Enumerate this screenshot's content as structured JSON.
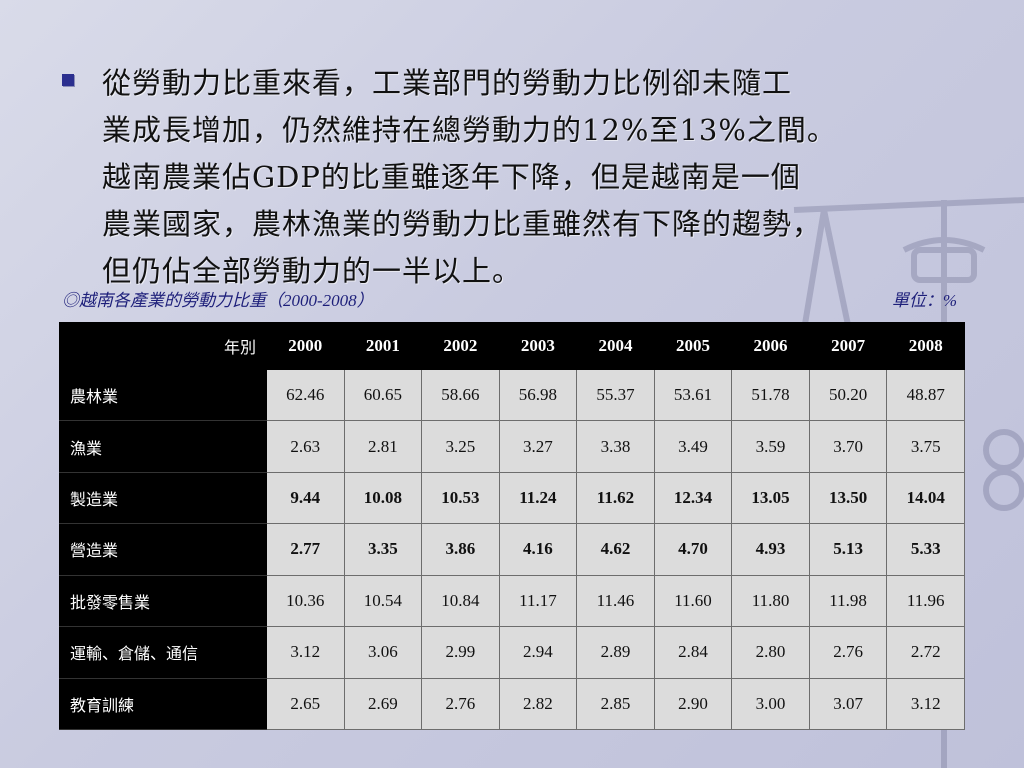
{
  "bullet": {
    "line1": "從勞動力比重來看，工業部門的勞動力比例卻未隨工",
    "line2": "業成長增加，仍然維持在總勞動力的12%至13%之間。",
    "line3": "越南農業佔GDP的比重雖逐年下降，但是越南是一個",
    "line4": "農業國家，農林漁業的勞動力比重雖然有下降的趨勢，",
    "line5": "但仍佔全部勞動力的一半以上。"
  },
  "caption": {
    "title": "◎越南各產業的勞動力比重（2000-2008）",
    "unit": "單位：%"
  },
  "table": {
    "corner": "年別",
    "years": [
      "2000",
      "2001",
      "2002",
      "2003",
      "2004",
      "2005",
      "2006",
      "2007",
      "2008"
    ],
    "rows": [
      {
        "label": "農林業",
        "values": [
          "62.46",
          "60.65",
          "58.66",
          "56.98",
          "55.37",
          "53.61",
          "51.78",
          "50.20",
          "48.87"
        ],
        "bold": false
      },
      {
        "label": "漁業",
        "values": [
          "2.63",
          "2.81",
          "3.25",
          "3.27",
          "3.38",
          "3.49",
          "3.59",
          "3.70",
          "3.75"
        ],
        "bold": false
      },
      {
        "label": "製造業",
        "values": [
          "9.44",
          "10.08",
          "10.53",
          "11.24",
          "11.62",
          "12.34",
          "13.05",
          "13.50",
          "14.04"
        ],
        "bold": true
      },
      {
        "label": "營造業",
        "values": [
          "2.77",
          "3.35",
          "3.86",
          "4.16",
          "4.62",
          "4.70",
          "4.93",
          "5.13",
          "5.33"
        ],
        "bold": true
      },
      {
        "label": "批發零售業",
        "values": [
          "10.36",
          "10.54",
          "10.84",
          "11.17",
          "11.46",
          "11.60",
          "11.80",
          "11.98",
          "11.96"
        ],
        "bold": false
      },
      {
        "label": "運輸、倉儲、通信",
        "values": [
          "3.12",
          "3.06",
          "2.99",
          "2.94",
          "2.89",
          "2.84",
          "2.80",
          "2.76",
          "2.72"
        ],
        "bold": false
      },
      {
        "label": "教育訓練",
        "values": [
          "2.65",
          "2.69",
          "2.76",
          "2.82",
          "2.85",
          "2.90",
          "3.00",
          "3.07",
          "3.12"
        ],
        "bold": false
      }
    ]
  },
  "colors": {
    "bullet_marker": "#2b2f8f",
    "caption_text": "#1d1f7a",
    "header_bg": "#000000",
    "cell_bg": "#dcdcdc"
  },
  "icons": {
    "background_decoration": "scale-of-justice-icon"
  }
}
